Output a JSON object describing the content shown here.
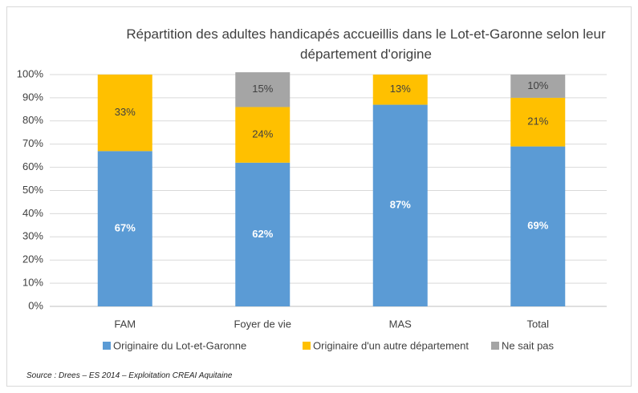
{
  "chart_data": {
    "type": "stacked_bar",
    "title": "Répartition des adultes handicapés accueillis dans le Lot-et-Garonne selon leur département d'origine",
    "categories": [
      "FAM",
      "Foyer de vie",
      "MAS",
      "Total"
    ],
    "series": [
      {
        "name": "Originaire du Lot-et-Garonne",
        "color": "#5b9bd5",
        "values": [
          67,
          62,
          87,
          69
        ],
        "value_labels": [
          "67%",
          "62%",
          "87%",
          "69%"
        ]
      },
      {
        "name": "Originaire d'un autre département",
        "color": "#ffc000",
        "values": [
          33,
          24,
          13,
          21
        ],
        "value_labels": [
          "33%",
          "24%",
          "13%",
          "21%"
        ]
      },
      {
        "name": "Ne sait pas",
        "color": "#a5a5a5",
        "values": [
          null,
          15,
          null,
          10
        ],
        "value_labels": [
          null,
          "15%",
          null,
          "10%"
        ]
      }
    ],
    "ylim": [
      0,
      100
    ],
    "yticks": [
      {
        "value": 0,
        "label": "0%"
      },
      {
        "value": 10,
        "label": "10%"
      },
      {
        "value": 20,
        "label": "20%"
      },
      {
        "value": 30,
        "label": "30%"
      },
      {
        "value": 40,
        "label": "40%"
      },
      {
        "value": 50,
        "label": "50%"
      },
      {
        "value": 60,
        "label": "60%"
      },
      {
        "value": 70,
        "label": "70%"
      },
      {
        "value": 80,
        "label": "80%"
      },
      {
        "value": 90,
        "label": "90%"
      },
      {
        "value": 100,
        "label": "100%"
      }
    ],
    "grid": true,
    "legend": "bottom",
    "source": "Source : Drees – ES 2014 – Exploitation CREAI Aquitaine"
  }
}
